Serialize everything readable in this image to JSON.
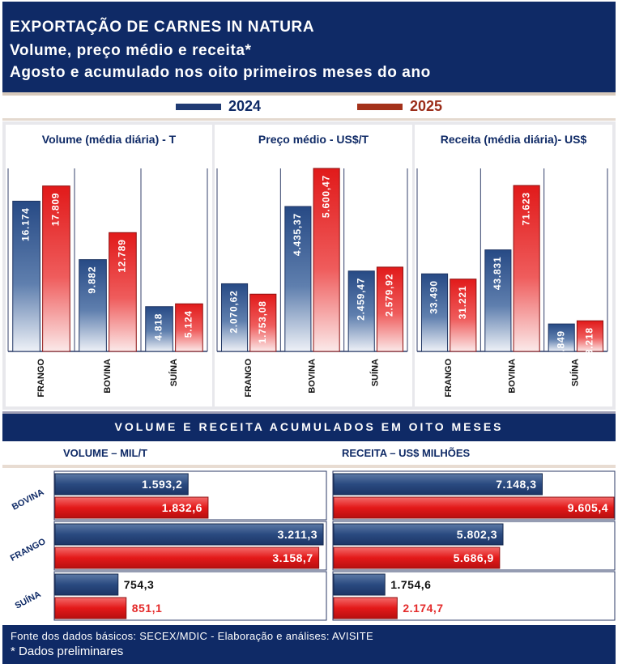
{
  "header": {
    "line1": "EXPORTAÇÃO DE CARNES IN NATURA",
    "line2": "Volume, preço médio e receita*",
    "line3": "Agosto e acumulado nos oito primeiros meses do ano"
  },
  "legend": {
    "y2024": "2024",
    "y2025": "2025"
  },
  "colors": {
    "navy": "#0f2a66",
    "blue2024": "#3b5c94",
    "red2025": "#e42a2a",
    "label2025": "#9b2d1a"
  },
  "chart_data": [
    {
      "type": "bar",
      "title": "Volume (média diária) - T",
      "categories": [
        "FRANGO",
        "BOVINA",
        "SUÍNA"
      ],
      "series": [
        {
          "name": "2024",
          "values": [
            16174,
            9882,
            4818
          ],
          "labels": [
            "16.174",
            "9.882",
            "4.818"
          ]
        },
        {
          "name": "2025",
          "values": [
            17809,
            12789,
            5124
          ],
          "labels": [
            "17.809",
            "12.789",
            "5.124"
          ]
        }
      ],
      "ylim": [
        0,
        19700
      ]
    },
    {
      "type": "bar",
      "title": "Preço médio - US$/T",
      "categories": [
        "FRANGO",
        "BOVINA",
        "SUÍNA"
      ],
      "series": [
        {
          "name": "2024",
          "values": [
            2070.62,
            4435.37,
            2459.47
          ],
          "labels": [
            "2.070,62",
            "4.435,37",
            "2.459,47"
          ]
        },
        {
          "name": "2025",
          "values": [
            1753.08,
            5600.47,
            2579.92
          ],
          "labels": [
            "1.753,08",
            "5.600,47",
            "2.579,92"
          ]
        }
      ],
      "ylim": [
        0,
        5600.47
      ]
    },
    {
      "type": "bar",
      "title": "Receita (média diária)- US$",
      "categories": [
        "FRANGO",
        "BOVINA",
        "SUÍNA"
      ],
      "series": [
        {
          "name": "2024",
          "values": [
            33490,
            43831,
            11849
          ],
          "labels": [
            "33.490",
            "43.831",
            "11.849"
          ]
        },
        {
          "name": "2025",
          "values": [
            31221,
            71623,
            13218
          ],
          "labels": [
            "31.221",
            "71.623",
            "13.218"
          ]
        }
      ],
      "ylim": [
        0,
        79000
      ]
    },
    {
      "type": "bar",
      "orientation": "horizontal",
      "title": "VOLUME – MIL/T",
      "categories": [
        "BOVINA",
        "FRANGO",
        "SUÍNA"
      ],
      "series": [
        {
          "name": "2024",
          "values": [
            1593.2,
            3211.3,
            754.3
          ],
          "labels": [
            "1.593,2",
            "3.211,3",
            "754,3"
          ]
        },
        {
          "name": "2025",
          "values": [
            1832.6,
            3158.7,
            851.1
          ],
          "labels": [
            "1.832,6",
            "3.158,7",
            "851,1"
          ]
        }
      ],
      "xlim": [
        0,
        3240
      ]
    },
    {
      "type": "bar",
      "orientation": "horizontal",
      "title": "RECEITA – US$ MILHÕES",
      "categories": [
        "BOVINA",
        "FRANGO",
        "SUÍNA"
      ],
      "series": [
        {
          "name": "2024",
          "values": [
            7148.3,
            5802.3,
            1754.6
          ],
          "labels": [
            "7.148,3",
            "5.802,3",
            "1.754,6"
          ]
        },
        {
          "name": "2025",
          "values": [
            9605.4,
            5686.9,
            2174.7
          ],
          "labels": [
            "9.605,4",
            "5.686,9",
            "2.174,7"
          ]
        }
      ],
      "xlim": [
        0,
        9605.4
      ]
    }
  ],
  "section_banner": "VOLUME E RECEITA ACUMULADOS EM OITO MESES",
  "footer": {
    "source": "Fonte dos dados básicos: SECEX/MDIC - Elaboração e análises: AVISITE",
    "note": "* Dados preliminares"
  }
}
